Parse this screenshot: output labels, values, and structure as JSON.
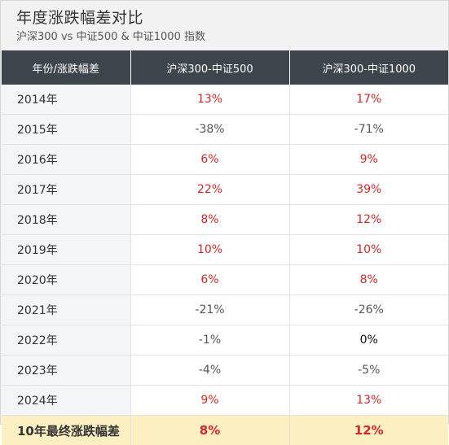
{
  "title": "年度涨跌幅差对比",
  "subtitle": "沪深300 vs 中证500 & 中证1000 指数",
  "headers": [
    "年份/涨跌幅差",
    "沪深300-中证500",
    "沪深300-中证1000"
  ],
  "rows": [
    {
      "year": "2014年",
      "v500": "13%",
      "v1000": "17%"
    },
    {
      "year": "2015年",
      "v500": "-38%",
      "v1000": "-71%"
    },
    {
      "year": "2016年",
      "v500": "6%",
      "v1000": "9%"
    },
    {
      "year": "2017年",
      "v500": "22%",
      "v1000": "39%"
    },
    {
      "year": "2018年",
      "v500": "8%",
      "v1000": "12%"
    },
    {
      "year": "2019年",
      "v500": "10%",
      "v1000": "10%"
    },
    {
      "year": "2020年",
      "v500": "6%",
      "v1000": "8%"
    },
    {
      "year": "2021年",
      "v500": "-21%",
      "v1000": "-26%"
    },
    {
      "year": "2022年",
      "v500": "-1%",
      "v1000": "0%"
    },
    {
      "year": "2023年",
      "v500": "-4%",
      "v1000": "-5%"
    },
    {
      "year": "2024年",
      "v500": "9%",
      "v1000": "13%"
    }
  ],
  "summary": {
    "label": "10年最终涨跌幅差",
    "v500": "8%",
    "v1000": "12%"
  },
  "colors": {
    "positive": "#d62728",
    "negative": "#555555",
    "zero": "#111111",
    "header_bg": "#3f454d",
    "summary_bg": "#fcefc1"
  }
}
